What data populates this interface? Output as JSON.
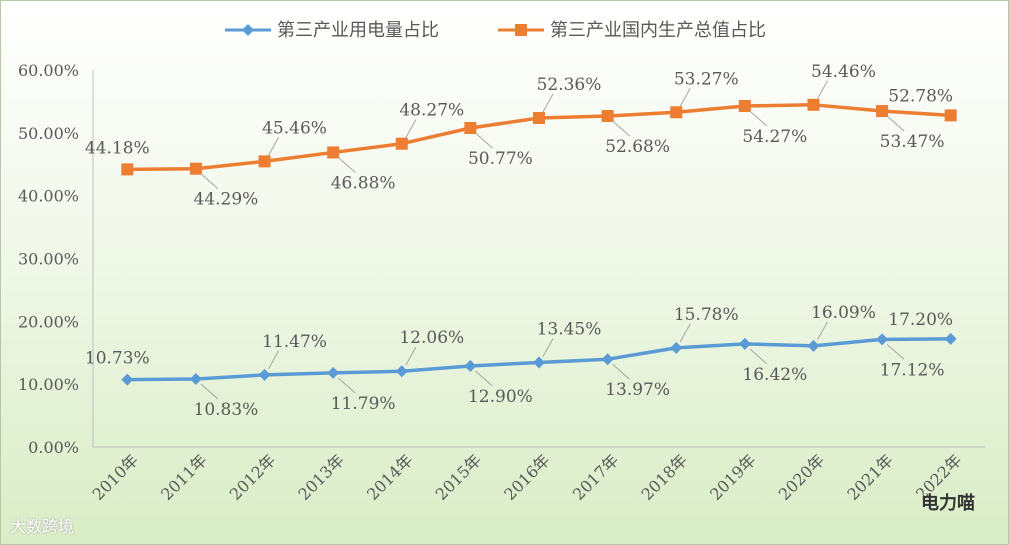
{
  "chart_data": {
    "type": "line",
    "title": "",
    "xlabel": "",
    "ylabel": "",
    "categories": [
      "2010年",
      "2011年",
      "2012年",
      "2013年",
      "2014年",
      "2015年",
      "2016年",
      "2017年",
      "2018年",
      "2019年",
      "2020年",
      "2021年",
      "2022年"
    ],
    "ylim": [
      0,
      60
    ],
    "yticks": [
      "0.00%",
      "10.00%",
      "20.00%",
      "30.00%",
      "40.00%",
      "50.00%",
      "60.00%"
    ],
    "grid": false,
    "legend_position": "top",
    "series": [
      {
        "name": "第三产业用电量占比",
        "color": "#5b9bd5",
        "marker": "diamond",
        "values": [
          10.73,
          10.83,
          11.47,
          11.79,
          12.06,
          12.9,
          13.45,
          13.97,
          15.78,
          16.42,
          16.09,
          17.12,
          17.2
        ],
        "labels": [
          "10.73%",
          "10.83%",
          "11.47%",
          "11.79%",
          "12.06%",
          "12.90%",
          "13.45%",
          "13.97%",
          "15.78%",
          "16.42%",
          "16.09%",
          "17.12%",
          "17.20%"
        ]
      },
      {
        "name": "第三产业国内生产总值占比",
        "color": "#ed7d31",
        "marker": "square",
        "values": [
          44.18,
          44.29,
          45.46,
          46.88,
          48.27,
          50.77,
          52.36,
          52.68,
          53.27,
          54.27,
          54.46,
          53.47,
          52.78
        ],
        "labels": [
          "44.18%",
          "44.29%",
          "45.46%",
          "46.88%",
          "48.27%",
          "50.77%",
          "52.36%",
          "52.68%",
          "53.27%",
          "54.27%",
          "54.46%",
          "53.47%",
          "52.78%"
        ]
      }
    ]
  },
  "watermark": "电力喵",
  "source_mark": "大数跨境"
}
